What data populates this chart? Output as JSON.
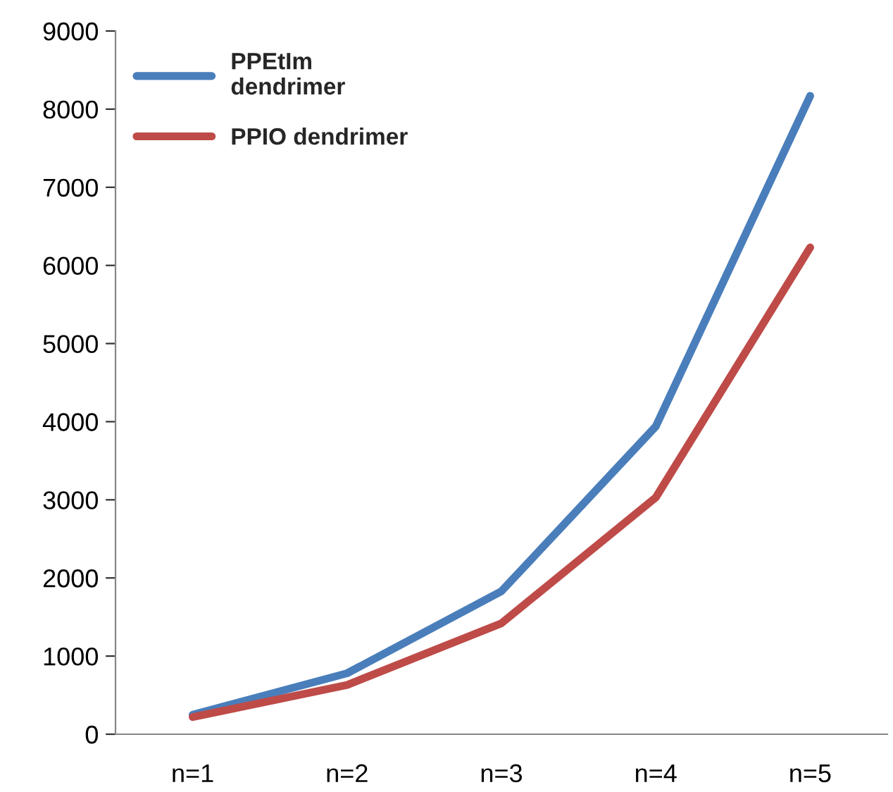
{
  "chart_data": {
    "type": "line",
    "categories": [
      "n=1",
      "n=2",
      "n=3",
      "n=4",
      "n=5"
    ],
    "series": [
      {
        "name": "PPEtIm\ndendrimer",
        "color": "#4a7ebb",
        "values": [
          250,
          780,
          1830,
          3940,
          8170
        ]
      },
      {
        "name": "PPIO dendrimer",
        "color": "#be4b48",
        "values": [
          220,
          630,
          1420,
          3030,
          6230
        ]
      }
    ],
    "ylim": [
      0,
      9000
    ],
    "yticks": [
      0,
      1000,
      2000,
      3000,
      4000,
      5000,
      6000,
      7000,
      8000,
      9000
    ],
    "grid": false,
    "legend": "top left",
    "marker": "none",
    "line_style": "solid"
  }
}
